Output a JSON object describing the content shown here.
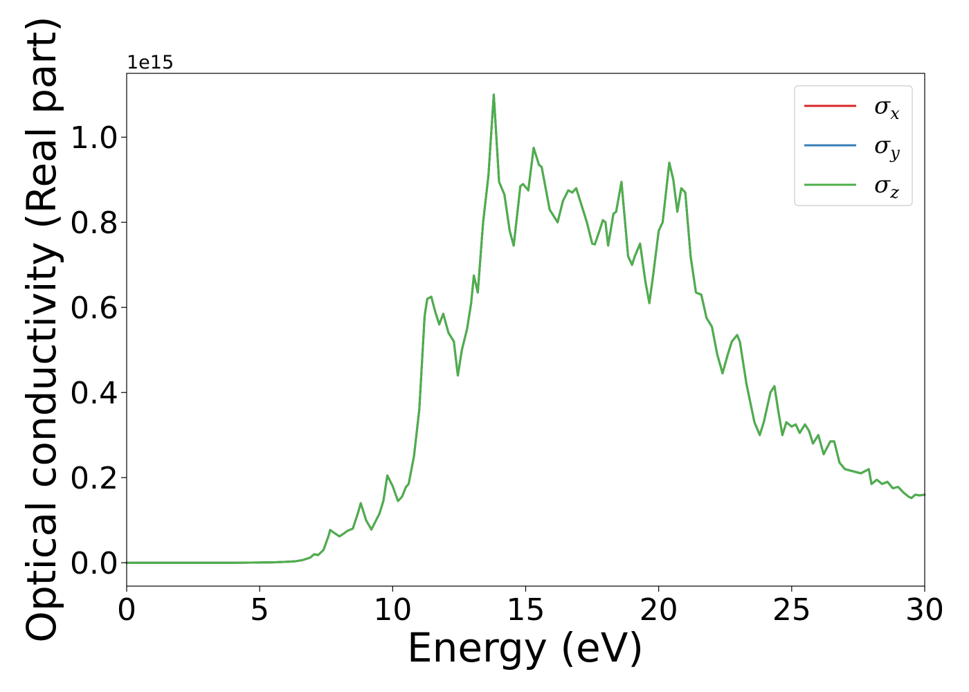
{
  "chart_data": {
    "type": "line",
    "xlabel": "Energy (eV)",
    "ylabel": "Optical conductivity (Real part)",
    "y_offset_label": "1e15",
    "xlim": [
      0,
      30
    ],
    "ylim": [
      -0.055,
      1.15
    ],
    "x_ticks": [
      0,
      5,
      10,
      15,
      20,
      25,
      30
    ],
    "x_tick_labels": [
      "0",
      "5",
      "10",
      "15",
      "20",
      "25",
      "30"
    ],
    "y_ticks": [
      0.0,
      0.2,
      0.4,
      0.6,
      0.8,
      1.0
    ],
    "y_tick_labels": [
      "0.0",
      "0.2",
      "0.4",
      "0.6",
      "0.8",
      "1.0"
    ],
    "grid": false,
    "legend_position": "top-right",
    "x": [
      0,
      1,
      2,
      3,
      4,
      5,
      5.5,
      6,
      6.3,
      6.6,
      6.9,
      7.05,
      7.2,
      7.4,
      7.6,
      7.65,
      7.8,
      8.0,
      8.15,
      8.3,
      8.5,
      8.7,
      8.8,
      9.0,
      9.2,
      9.5,
      9.65,
      9.8,
      10.0,
      10.2,
      10.35,
      10.5,
      10.6,
      10.8,
      11.0,
      11.2,
      11.3,
      11.45,
      11.6,
      11.75,
      11.9,
      12.1,
      12.3,
      12.45,
      12.6,
      12.8,
      12.95,
      13.05,
      13.2,
      13.4,
      13.6,
      13.8,
      14.0,
      14.2,
      14.4,
      14.55,
      14.8,
      14.9,
      15.1,
      15.3,
      15.5,
      15.6,
      15.9,
      16.2,
      16.4,
      16.6,
      16.75,
      16.9,
      17.05,
      17.3,
      17.5,
      17.6,
      17.8,
      17.9,
      18.0,
      18.1,
      18.3,
      18.4,
      18.6,
      18.85,
      19.0,
      19.1,
      19.3,
      19.5,
      19.65,
      19.8,
      20.0,
      20.15,
      20.4,
      20.55,
      20.7,
      20.85,
      21.0,
      21.2,
      21.4,
      21.6,
      21.8,
      22.0,
      22.2,
      22.4,
      22.6,
      22.75,
      22.95,
      23.05,
      23.3,
      23.6,
      23.8,
      23.95,
      24.2,
      24.35,
      24.5,
      24.65,
      24.8,
      25.0,
      25.15,
      25.3,
      25.5,
      25.65,
      25.8,
      26.0,
      26.2,
      26.45,
      26.6,
      26.8,
      27.0,
      27.3,
      27.6,
      27.9,
      28.0,
      28.2,
      28.4,
      28.6,
      28.8,
      29.0,
      29.2,
      29.4,
      29.5,
      29.65,
      29.8,
      30.0
    ],
    "series": [
      {
        "name": "σx",
        "color": "#d62728",
        "values": [
          0,
          0,
          0,
          0,
          0,
          0.0005,
          0.001,
          0.002,
          0.003,
          0.006,
          0.012,
          0.02,
          0.018,
          0.03,
          0.065,
          0.077,
          0.07,
          0.062,
          0.068,
          0.075,
          0.08,
          0.118,
          0.14,
          0.1,
          0.078,
          0.115,
          0.145,
          0.205,
          0.18,
          0.145,
          0.155,
          0.178,
          0.185,
          0.25,
          0.36,
          0.58,
          0.62,
          0.625,
          0.59,
          0.56,
          0.585,
          0.54,
          0.52,
          0.44,
          0.5,
          0.55,
          0.61,
          0.675,
          0.635,
          0.8,
          0.91,
          1.1,
          0.895,
          0.865,
          0.78,
          0.745,
          0.885,
          0.89,
          0.875,
          0.975,
          0.935,
          0.93,
          0.83,
          0.8,
          0.85,
          0.875,
          0.87,
          0.88,
          0.85,
          0.8,
          0.75,
          0.748,
          0.785,
          0.805,
          0.8,
          0.745,
          0.82,
          0.825,
          0.895,
          0.72,
          0.7,
          0.72,
          0.75,
          0.66,
          0.61,
          0.68,
          0.78,
          0.8,
          0.94,
          0.9,
          0.825,
          0.88,
          0.87,
          0.72,
          0.635,
          0.63,
          0.575,
          0.555,
          0.49,
          0.445,
          0.49,
          0.52,
          0.535,
          0.52,
          0.42,
          0.33,
          0.3,
          0.33,
          0.4,
          0.415,
          0.355,
          0.3,
          0.33,
          0.32,
          0.325,
          0.305,
          0.325,
          0.31,
          0.28,
          0.3,
          0.255,
          0.285,
          0.285,
          0.235,
          0.22,
          0.215,
          0.21,
          0.22,
          0.185,
          0.195,
          0.185,
          0.19,
          0.175,
          0.178,
          0.165,
          0.155,
          0.152,
          0.16,
          0.158,
          0.16
        ]
      },
      {
        "name": "σy",
        "color": "#377eb8",
        "values": [
          0,
          0,
          0,
          0,
          0,
          0.0005,
          0.001,
          0.002,
          0.003,
          0.006,
          0.012,
          0.02,
          0.018,
          0.03,
          0.065,
          0.077,
          0.07,
          0.062,
          0.068,
          0.075,
          0.08,
          0.118,
          0.14,
          0.1,
          0.078,
          0.115,
          0.145,
          0.205,
          0.18,
          0.145,
          0.155,
          0.178,
          0.185,
          0.25,
          0.36,
          0.58,
          0.62,
          0.625,
          0.59,
          0.56,
          0.585,
          0.54,
          0.52,
          0.44,
          0.5,
          0.55,
          0.61,
          0.675,
          0.635,
          0.8,
          0.91,
          1.1,
          0.895,
          0.865,
          0.78,
          0.745,
          0.885,
          0.89,
          0.875,
          0.975,
          0.935,
          0.93,
          0.83,
          0.8,
          0.85,
          0.875,
          0.87,
          0.88,
          0.85,
          0.8,
          0.75,
          0.748,
          0.785,
          0.805,
          0.8,
          0.745,
          0.82,
          0.825,
          0.895,
          0.72,
          0.7,
          0.72,
          0.75,
          0.66,
          0.61,
          0.68,
          0.78,
          0.8,
          0.94,
          0.9,
          0.825,
          0.88,
          0.87,
          0.72,
          0.635,
          0.63,
          0.575,
          0.555,
          0.49,
          0.445,
          0.49,
          0.52,
          0.535,
          0.52,
          0.42,
          0.33,
          0.3,
          0.33,
          0.4,
          0.415,
          0.355,
          0.3,
          0.33,
          0.32,
          0.325,
          0.305,
          0.325,
          0.31,
          0.28,
          0.3,
          0.255,
          0.285,
          0.285,
          0.235,
          0.22,
          0.215,
          0.21,
          0.22,
          0.185,
          0.195,
          0.185,
          0.19,
          0.175,
          0.178,
          0.165,
          0.155,
          0.152,
          0.16,
          0.158,
          0.16
        ]
      },
      {
        "name": "σz",
        "color": "#4daf4a",
        "values": [
          0,
          0,
          0,
          0,
          0,
          0.0005,
          0.001,
          0.002,
          0.003,
          0.006,
          0.012,
          0.02,
          0.018,
          0.03,
          0.065,
          0.077,
          0.07,
          0.062,
          0.068,
          0.075,
          0.08,
          0.118,
          0.14,
          0.1,
          0.078,
          0.115,
          0.145,
          0.205,
          0.18,
          0.145,
          0.155,
          0.178,
          0.185,
          0.25,
          0.36,
          0.58,
          0.62,
          0.625,
          0.59,
          0.56,
          0.585,
          0.54,
          0.52,
          0.44,
          0.5,
          0.55,
          0.61,
          0.675,
          0.635,
          0.8,
          0.91,
          1.1,
          0.895,
          0.865,
          0.78,
          0.745,
          0.885,
          0.89,
          0.875,
          0.975,
          0.935,
          0.93,
          0.83,
          0.8,
          0.85,
          0.875,
          0.87,
          0.88,
          0.85,
          0.8,
          0.75,
          0.748,
          0.785,
          0.805,
          0.8,
          0.745,
          0.82,
          0.825,
          0.895,
          0.72,
          0.7,
          0.72,
          0.75,
          0.66,
          0.61,
          0.68,
          0.78,
          0.8,
          0.94,
          0.9,
          0.825,
          0.88,
          0.87,
          0.72,
          0.635,
          0.63,
          0.575,
          0.555,
          0.49,
          0.445,
          0.49,
          0.52,
          0.535,
          0.52,
          0.42,
          0.33,
          0.3,
          0.33,
          0.4,
          0.415,
          0.355,
          0.3,
          0.33,
          0.32,
          0.325,
          0.305,
          0.325,
          0.31,
          0.28,
          0.3,
          0.255,
          0.285,
          0.285,
          0.235,
          0.22,
          0.215,
          0.21,
          0.22,
          0.185,
          0.195,
          0.185,
          0.19,
          0.175,
          0.178,
          0.165,
          0.155,
          0.152,
          0.16,
          0.158,
          0.16
        ]
      }
    ],
    "legend": [
      {
        "symbol": "σ",
        "sub": "x",
        "color": "#d62728"
      },
      {
        "symbol": "σ",
        "sub": "y",
        "color": "#377eb8"
      },
      {
        "symbol": "σ",
        "sub": "z",
        "color": "#4daf4a"
      }
    ]
  }
}
